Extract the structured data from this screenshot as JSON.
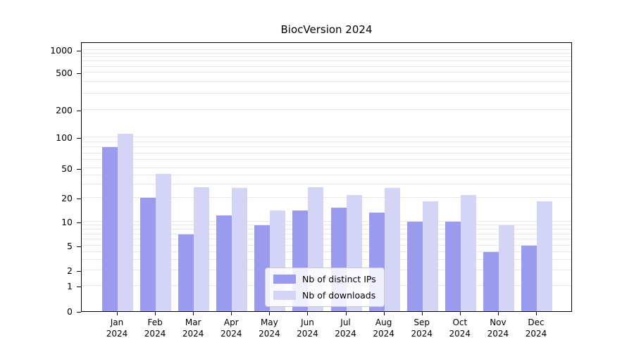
{
  "chart_data": {
    "type": "bar",
    "title": "BiocVersion 2024",
    "categories": [
      "Jan",
      "Feb",
      "Mar",
      "Apr",
      "May",
      "Jun",
      "Jul",
      "Aug",
      "Sep",
      "Oct",
      "Nov",
      "Dec"
    ],
    "year": "2024",
    "series": [
      {
        "name": "Nb of distinct IPs",
        "color": "#9a9aee",
        "values": [
          80,
          20,
          7,
          12,
          9,
          14,
          15,
          13,
          10,
          10,
          4,
          5
        ]
      },
      {
        "name": "Nb of downloads",
        "color": "#d4d4f6",
        "values": [
          110,
          42,
          28,
          27,
          14,
          28,
          22,
          27,
          18,
          22,
          9,
          18
        ]
      }
    ],
    "y_ticks": [
      0,
      1,
      2,
      5,
      10,
      20,
      50,
      100,
      200,
      500,
      1000
    ],
    "y_scale": "log",
    "ylim": [
      0,
      1000
    ],
    "xlabel": "",
    "ylabel": "",
    "grid": true,
    "legend_position": "lower center"
  },
  "legend": {
    "items": [
      {
        "label": "Nb of distinct IPs",
        "color": "#9a9aee"
      },
      {
        "label": "Nb of downloads",
        "color": "#d4d4f6"
      }
    ]
  }
}
